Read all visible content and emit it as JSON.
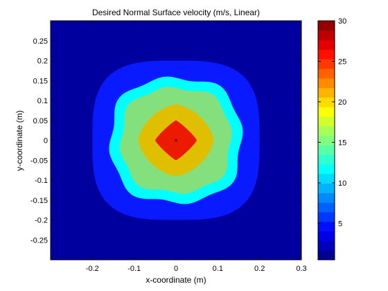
{
  "chart_data": {
    "type": "heatmap",
    "subtype": "filled-contour",
    "title": "Desired Normal Surface velocity (m/s, Linear)",
    "xlabel": "x-coordinate (m)",
    "ylabel": "y-coordinate (m)",
    "xlim": [
      -0.3,
      0.3
    ],
    "ylim": [
      -0.3,
      0.3
    ],
    "xticks": [
      -0.2,
      -0.1,
      0,
      0.1,
      0.2,
      0.3
    ],
    "xtick_labels": [
      "-0.2",
      "-0.1",
      "0",
      "0.1",
      "0.2",
      "0.3"
    ],
    "yticks": [
      0.25,
      0.2,
      0.15,
      0.1,
      0.05,
      0,
      -0.05,
      -0.1,
      -0.15,
      -0.2,
      -0.25
    ],
    "ytick_labels": [
      "0.25",
      "0.2",
      "0.15",
      "0.1",
      "0.05",
      "0",
      "-0.05",
      "-0.1",
      "-0.15",
      "-0.2",
      "-0.25"
    ],
    "colormap": "jet",
    "colorbar": {
      "range": [
        0.5,
        30
      ],
      "ticks": [
        5,
        10,
        15,
        20,
        25,
        30
      ],
      "tick_labels": [
        "5",
        "10",
        "15",
        "20",
        "25",
        "30"
      ],
      "levels": 25
    },
    "regions": [
      {
        "level": "background",
        "value": 1.5,
        "color": "#00009f"
      },
      {
        "level": "0.20 m contour",
        "value": 5,
        "color": "#0a1aff"
      },
      {
        "level": "0.15 m contour",
        "value": 10,
        "color": "#00ffff"
      },
      {
        "level": "0.13 m contour",
        "value": 15,
        "color": "#84e07c"
      },
      {
        "level": "0.09 m contour",
        "value": 21,
        "color": "#e0bf00"
      },
      {
        "level": "0.05 m contour",
        "value": 27,
        "color": "#ec1a00"
      }
    ],
    "peak": {
      "x": 0,
      "y": 0,
      "value": 30,
      "color": "#7f0000"
    }
  }
}
